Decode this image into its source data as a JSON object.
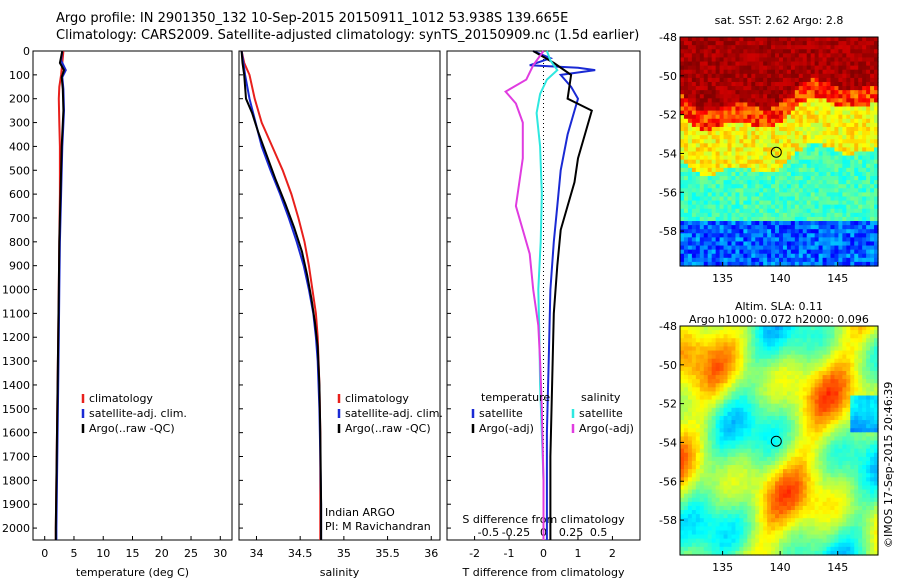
{
  "header": {
    "line1": "Argo profile: IN 2901350_132 10-Sep-2015 20150911_1012 53.938S 139.665E",
    "line2": "Climatology: CARS2009. Satellite-adjusted climatology: synTS_20150909.nc (1.5d earlier)"
  },
  "credit": "©IMOS 17-Sep-2015 20:46:39",
  "colors": {
    "climatology": "#e8201c",
    "satellite": "#1a2ad4",
    "argo": "#000000",
    "satellite_s": "#2ee8e0",
    "argo_s": "#e03ce0"
  },
  "chart_data": [
    {
      "type": "line",
      "panel": "temperature",
      "xlabel": "temperature (deg C)",
      "ylabel": "",
      "xlim": [
        -2,
        32
      ],
      "ylim": [
        2050,
        0
      ],
      "xticks": [
        0,
        5,
        10,
        15,
        20,
        25,
        30
      ],
      "yticks": [
        0,
        100,
        200,
        300,
        400,
        500,
        600,
        700,
        800,
        900,
        1000,
        1100,
        1200,
        1300,
        1400,
        1500,
        1600,
        1700,
        1800,
        1900,
        2000
      ],
      "legend": [
        "climatology",
        "satellite-adj. clim.",
        "Argo(..raw -QC)"
      ],
      "series": [
        {
          "name": "climatology",
          "color": "#e8201c",
          "points": [
            [
              3.2,
              0
            ],
            [
              3.0,
              50
            ],
            [
              2.8,
              100
            ],
            [
              2.5,
              150
            ],
            [
              2.4,
              200
            ],
            [
              2.5,
              300
            ],
            [
              2.6,
              400
            ],
            [
              2.6,
              600
            ],
            [
              2.5,
              800
            ],
            [
              2.4,
              1000
            ],
            [
              2.3,
              1200
            ],
            [
              2.2,
              1400
            ],
            [
              2.1,
              1600
            ],
            [
              2.0,
              1800
            ],
            [
              1.9,
              2000
            ],
            [
              1.9,
              2050
            ]
          ]
        },
        {
          "name": "satellite-adj. clim.",
          "color": "#1a2ad4",
          "points": [
            [
              3.0,
              0
            ],
            [
              2.8,
              40
            ],
            [
              3.6,
              80
            ],
            [
              3.0,
              110
            ],
            [
              3.2,
              160
            ],
            [
              3.3,
              250
            ],
            [
              3.0,
              400
            ],
            [
              2.8,
              600
            ],
            [
              2.6,
              800
            ],
            [
              2.5,
              1000
            ],
            [
              2.4,
              1200
            ],
            [
              2.3,
              1400
            ],
            [
              2.2,
              1600
            ],
            [
              2.1,
              1800
            ],
            [
              2.0,
              2000
            ],
            [
              2.0,
              2050
            ]
          ]
        },
        {
          "name": "Argo(..raw -QC)",
          "color": "#000000",
          "points": [
            [
              3.0,
              0
            ],
            [
              2.6,
              50
            ],
            [
              3.3,
              80
            ],
            [
              2.9,
              110
            ],
            [
              3.1,
              160
            ],
            [
              3.2,
              250
            ],
            [
              2.9,
              400
            ],
            [
              2.7,
              600
            ],
            [
              2.5,
              800
            ],
            [
              2.4,
              1000
            ],
            [
              2.3,
              1200
            ],
            [
              2.2,
              1400
            ],
            [
              2.1,
              1600
            ],
            [
              2.0,
              1800
            ],
            [
              1.9,
              2000
            ],
            [
              1.9,
              2050
            ]
          ]
        }
      ]
    },
    {
      "type": "line",
      "panel": "salinity",
      "xlabel": "salinity",
      "xlim": [
        33.8,
        36.1
      ],
      "ylim": [
        2050,
        0
      ],
      "xticks": [
        34,
        34.5,
        35,
        35.5,
        36
      ],
      "legend": [
        "climatology",
        "satellite-adj. clim.",
        "Argo(..raw -QC)"
      ],
      "annotation": [
        "Indian ARGO",
        "PI: M Ravichandran"
      ],
      "series": [
        {
          "name": "climatology",
          "color": "#e8201c",
          "points": [
            [
              33.83,
              0
            ],
            [
              33.86,
              50
            ],
            [
              33.92,
              100
            ],
            [
              33.98,
              200
            ],
            [
              34.06,
              300
            ],
            [
              34.18,
              400
            ],
            [
              34.3,
              500
            ],
            [
              34.4,
              600
            ],
            [
              34.48,
              700
            ],
            [
              34.55,
              800
            ],
            [
              34.6,
              900
            ],
            [
              34.64,
              1000
            ],
            [
              34.68,
              1100
            ],
            [
              34.7,
              1200
            ],
            [
              34.72,
              1400
            ],
            [
              34.73,
              1600
            ],
            [
              34.73,
              1800
            ],
            [
              34.73,
              2000
            ],
            [
              34.73,
              2050
            ]
          ]
        },
        {
          "name": "satellite-adj. clim.",
          "color": "#1a2ad4",
          "points": [
            [
              33.83,
              0
            ],
            [
              33.85,
              50
            ],
            [
              33.87,
              100
            ],
            [
              33.92,
              200
            ],
            [
              33.99,
              300
            ],
            [
              34.06,
              400
            ],
            [
              34.16,
              500
            ],
            [
              34.27,
              600
            ],
            [
              34.37,
              700
            ],
            [
              34.46,
              800
            ],
            [
              34.54,
              900
            ],
            [
              34.6,
              1000
            ],
            [
              34.65,
              1100
            ],
            [
              34.68,
              1200
            ],
            [
              34.7,
              1300
            ],
            [
              34.72,
              1500
            ],
            [
              34.73,
              1700
            ],
            [
              34.74,
              1900
            ],
            [
              34.74,
              2050
            ]
          ]
        },
        {
          "name": "Argo(..raw -QC)",
          "color": "#000000",
          "points": [
            [
              33.83,
              0
            ],
            [
              33.84,
              50
            ],
            [
              33.86,
              100
            ],
            [
              33.88,
              200
            ],
            [
              33.95,
              260
            ],
            [
              34.02,
              340
            ],
            [
              34.1,
              420
            ],
            [
              34.22,
              540
            ],
            [
              34.33,
              640
            ],
            [
              34.43,
              740
            ],
            [
              34.52,
              840
            ],
            [
              34.58,
              940
            ],
            [
              34.63,
              1040
            ],
            [
              34.67,
              1140
            ],
            [
              34.7,
              1240
            ],
            [
              34.72,
              1400
            ],
            [
              34.73,
              1600
            ],
            [
              34.74,
              1900
            ],
            [
              34.74,
              2050
            ]
          ]
        }
      ]
    },
    {
      "type": "line",
      "panel": "difference",
      "xlabel": "T difference from climatology",
      "xlabel_top": "S difference from climatology",
      "xlim": [
        -2.8,
        2.8
      ],
      "ylim": [
        2050,
        0
      ],
      "xticks": [
        -2,
        -1,
        0,
        1,
        2
      ],
      "xticks_s": [
        "-0.5",
        "-0.25",
        "0",
        "0.25",
        "0.5"
      ],
      "legend_t_title": "temperature",
      "legend_s_title": "salinity",
      "legend_t": [
        "satellite",
        "Argo(-adj)"
      ],
      "legend_s": [
        "satellite",
        "Argo(-adj)"
      ],
      "series": [
        {
          "name": "T satellite",
          "color": "#1a2ad4",
          "points": [
            [
              -0.3,
              0
            ],
            [
              0.2,
              30
            ],
            [
              -0.4,
              60
            ],
            [
              1.0,
              70
            ],
            [
              1.5,
              80
            ],
            [
              0.5,
              100
            ],
            [
              0.8,
              150
            ],
            [
              1.0,
              200
            ],
            [
              0.9,
              250
            ],
            [
              0.7,
              350
            ],
            [
              0.5,
              500
            ],
            [
              0.4,
              650
            ],
            [
              0.3,
              800
            ],
            [
              0.2,
              1000
            ],
            [
              0.15,
              1300
            ],
            [
              0.1,
              1600
            ],
            [
              0.1,
              2000
            ],
            [
              0.1,
              2050
            ]
          ]
        },
        {
          "name": "T Argo(-adj)",
          "color": "#000000",
          "points": [
            [
              -0.3,
              0
            ],
            [
              0.3,
              50
            ],
            [
              0.8,
              100
            ],
            [
              0.7,
              200
            ],
            [
              1.4,
              250
            ],
            [
              1.2,
              350
            ],
            [
              1.0,
              450
            ],
            [
              0.9,
              550
            ],
            [
              0.7,
              650
            ],
            [
              0.5,
              750
            ],
            [
              0.4,
              900
            ],
            [
              0.3,
              1100
            ],
            [
              0.25,
              1400
            ],
            [
              0.2,
              1700
            ],
            [
              0.2,
              2000
            ],
            [
              0.2,
              2050
            ]
          ]
        },
        {
          "name": "S satellite",
          "color": "#2ee8e0",
          "points": [
            [
              0.1,
              0
            ],
            [
              0.2,
              40
            ],
            [
              0.4,
              80
            ],
            [
              0.1,
              120
            ],
            [
              -0.1,
              180
            ],
            [
              -0.2,
              260
            ],
            [
              -0.1,
              400
            ],
            [
              -0.05,
              600
            ],
            [
              -0.08,
              800
            ],
            [
              -0.15,
              1000
            ],
            [
              -0.12,
              1200
            ],
            [
              -0.1,
              1400
            ],
            [
              -0.05,
              1600
            ],
            [
              0.0,
              1800
            ],
            [
              0.0,
              2050
            ]
          ]
        },
        {
          "name": "S Argo(-adj)",
          "color": "#e03ce0",
          "points": [
            [
              0.0,
              0
            ],
            [
              -0.3,
              60
            ],
            [
              -0.5,
              120
            ],
            [
              -1.1,
              170
            ],
            [
              -0.8,
              220
            ],
            [
              -0.6,
              300
            ],
            [
              -0.6,
              450
            ],
            [
              -0.8,
              650
            ],
            [
              -0.6,
              750
            ],
            [
              -0.4,
              850
            ],
            [
              -0.3,
              1000
            ],
            [
              -0.15,
              1150
            ],
            [
              -0.1,
              1300
            ],
            [
              -0.05,
              1500
            ],
            [
              0.0,
              1800
            ],
            [
              0.0,
              2050
            ]
          ]
        }
      ]
    },
    {
      "type": "heatmap",
      "panel": "sst_map",
      "title": "sat. SST: 2.62 Argo: 2.8",
      "xlim": [
        131.3,
        148.5
      ],
      "ylim": [
        -59.8,
        -48
      ],
      "xticks": [
        135,
        140,
        145
      ],
      "yticks": [
        -48,
        -50,
        -52,
        -54,
        -56,
        -58
      ],
      "marker": [
        139.665,
        -53.938
      ]
    },
    {
      "type": "heatmap",
      "panel": "sla_map",
      "title": "Altim. SLA: 0.11",
      "subtitle": "Argo h1000: 0.072 h2000: 0.096",
      "xlim": [
        131.3,
        148.5
      ],
      "ylim": [
        -59.8,
        -48
      ],
      "xticks": [
        135,
        140,
        145
      ],
      "yticks": [
        -48,
        -50,
        -52,
        -54,
        -56,
        -58
      ],
      "marker": [
        139.665,
        -53.938
      ]
    }
  ]
}
